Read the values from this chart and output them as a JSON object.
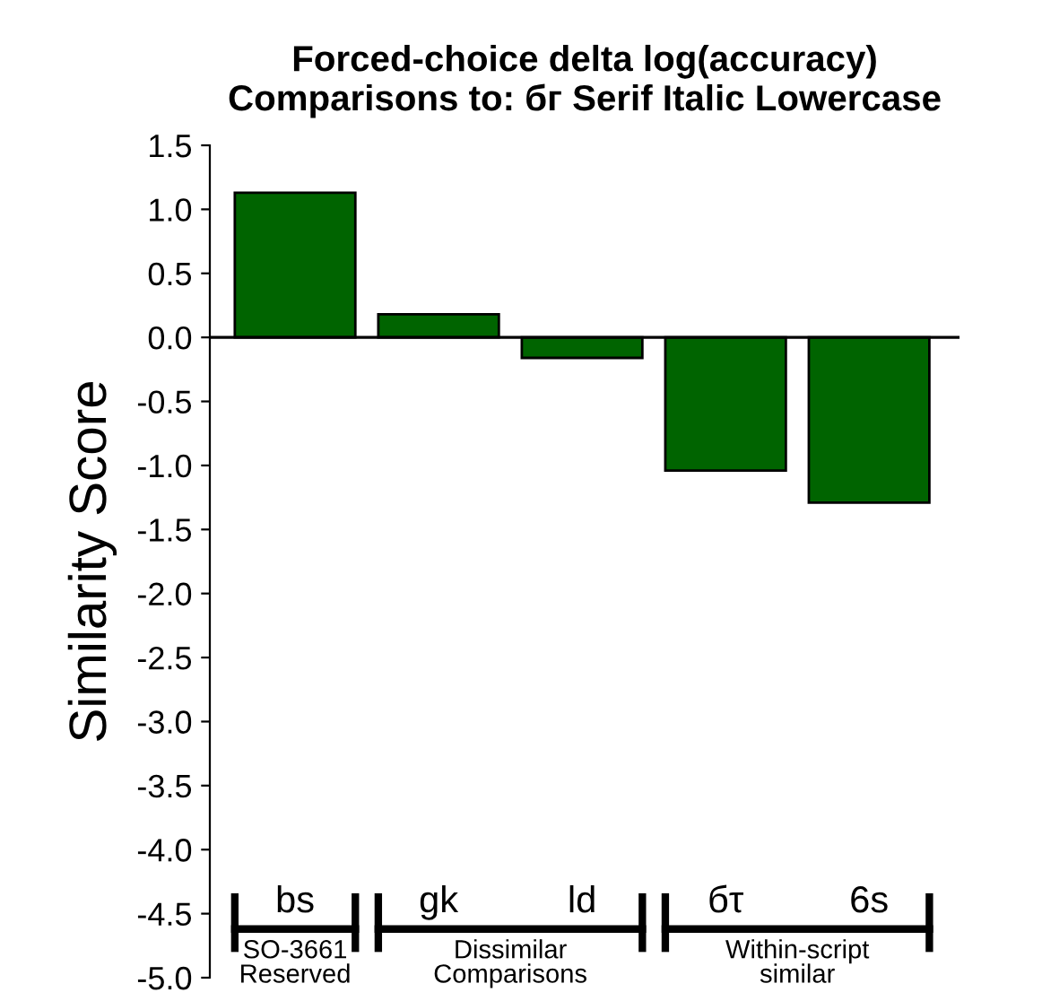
{
  "chart_data": {
    "type": "bar",
    "title": "Forced-choice delta log(accuracy)\nComparisons to: бг Serif Italic Lowercase",
    "ylabel": "Similarity Score",
    "categories": [
      "bs",
      "gk",
      "ld",
      "бτ",
      "6s"
    ],
    "values": [
      1.13,
      0.18,
      -0.16,
      -1.04,
      -1.29
    ],
    "color": "#006400",
    "ylim": [
      -5.0,
      1.5
    ],
    "yticks": [
      {
        "value": -5,
        "label": "-5.0"
      },
      -4.5,
      {
        "value": -4,
        "label": "-4.0"
      },
      -3.5,
      {
        "value": -3,
        "label": "-3.0"
      },
      -2.5,
      {
        "value": -2,
        "label": "-2.0"
      },
      -1.5,
      {
        "value": -1,
        "label": "-1.0"
      },
      -0.5,
      {
        "value": 0,
        "label": "0.0"
      },
      0.5,
      {
        "value": 1,
        "label": "1.0"
      },
      1.5
    ],
    "ref_lines": [
      {
        "axis": "y",
        "value": 0.0,
        "color": "#000000"
      }
    ],
    "annotations": [
      "SO-3661\nReserved",
      "Dissimilar\nComparisons",
      "Within-script\nsimilar"
    ],
    "grid": false
  }
}
